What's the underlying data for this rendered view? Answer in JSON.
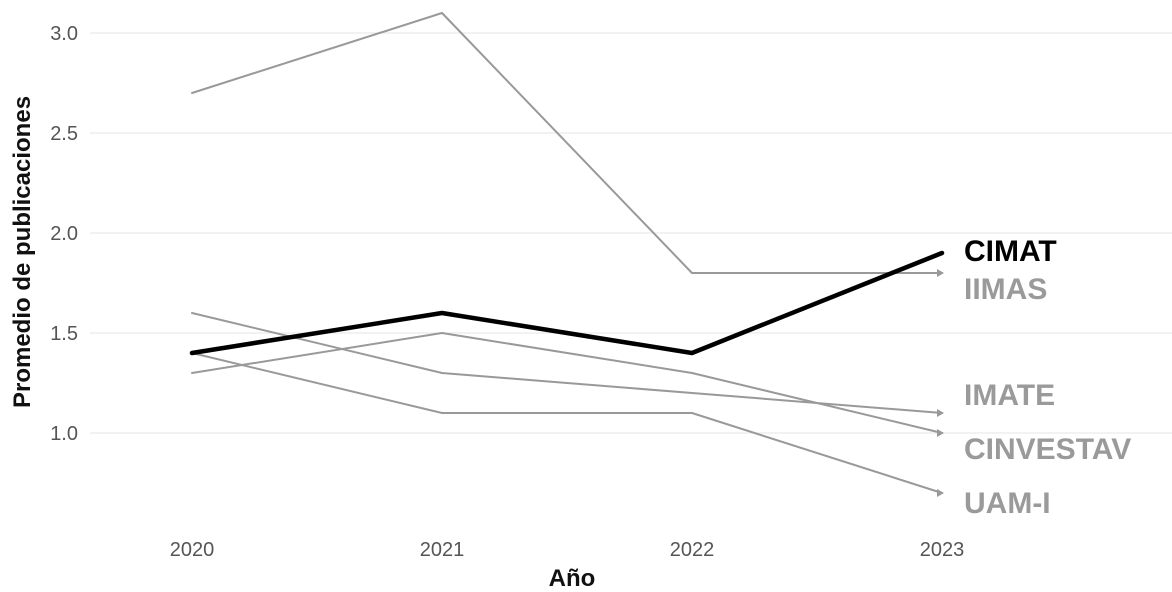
{
  "chart_data": {
    "type": "line",
    "title": "",
    "xlabel": "Año",
    "ylabel": "Promedio de publicaciones",
    "x": [
      2020,
      2021,
      2022,
      2023
    ],
    "x_tick_labels": [
      "2020",
      "2021",
      "2022",
      "2023"
    ],
    "y_ticks": [
      1.0,
      1.5,
      2.0,
      2.5,
      3.0
    ],
    "y_tick_labels": [
      "1.0",
      "1.5",
      "2.0",
      "2.5",
      "3.0"
    ],
    "ylim": [
      0.62,
      3.12
    ],
    "grid": true,
    "legend": "direct labels at line ends (right)",
    "highlight_color": "#000000",
    "muted_color": "#999999",
    "series": [
      {
        "name": "CIMAT",
        "values": [
          1.4,
          1.6,
          1.4,
          1.9
        ],
        "highlight": true
      },
      {
        "name": "IIMAS",
        "values": [
          2.7,
          3.1,
          1.8,
          1.8
        ],
        "highlight": false
      },
      {
        "name": "IMATE",
        "values": [
          1.6,
          1.3,
          1.2,
          1.1
        ],
        "highlight": false
      },
      {
        "name": "CINVESTAV",
        "values": [
          1.3,
          1.5,
          1.3,
          1.0
        ],
        "highlight": false
      },
      {
        "name": "UAM-I",
        "values": [
          1.4,
          1.1,
          1.1,
          0.7
        ],
        "highlight": false
      }
    ]
  }
}
